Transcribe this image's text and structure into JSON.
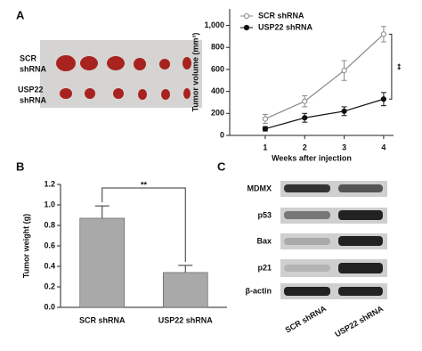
{
  "panels": {
    "a": "A",
    "b": "B",
    "c": "C"
  },
  "tumor_photo": {
    "row_labels": [
      [
        "SCR",
        "shRNA"
      ],
      [
        "USP22",
        "shRNA"
      ]
    ]
  },
  "western_blot": {
    "proteins": [
      "MDMX",
      "p53",
      "Bax",
      "p21",
      "β-actin"
    ],
    "lanes": [
      "SCR shRNA",
      "USP22 shRNA"
    ]
  },
  "chart_data": [
    {
      "type": "line",
      "x_label": "Weeks after injection",
      "y_label": "Tumor volume (mm³)",
      "x": [
        1,
        2,
        3,
        4
      ],
      "xlim": [
        0.1,
        4.25
      ],
      "xticks": [
        1,
        2,
        3,
        4
      ],
      "ylim": [
        0,
        1150
      ],
      "yticks": [
        0,
        200,
        400,
        600,
        800,
        {
          "value": 1000,
          "label": "1,000"
        }
      ],
      "series": [
        {
          "name": "SCR shRNA",
          "color": "#888888",
          "values": [
            150,
            310,
            590,
            920
          ],
          "errors": [
            40,
            50,
            90,
            70
          ]
        },
        {
          "name": "USP22 shRNA",
          "color": "#111111",
          "values": [
            60,
            160,
            220,
            330
          ],
          "errors": [
            20,
            40,
            40,
            60
          ]
        }
      ],
      "significance": "**",
      "legend": "upper left"
    },
    {
      "type": "bar",
      "y_label": "Tumor weight (g)",
      "categories": [
        "SCR shRNA",
        "USP22 shRNA"
      ],
      "values": [
        0.87,
        0.34
      ],
      "errors": [
        0.12,
        0.07
      ],
      "color": "#a9a9a9",
      "ylim": [
        0,
        1.2
      ],
      "yticks": [
        {
          "value": 0,
          "label": "0.0"
        },
        0.2,
        0.4,
        0.6,
        0.8,
        {
          "value": 1,
          "label": "1.0"
        },
        1.2
      ],
      "significance": "**"
    }
  ]
}
